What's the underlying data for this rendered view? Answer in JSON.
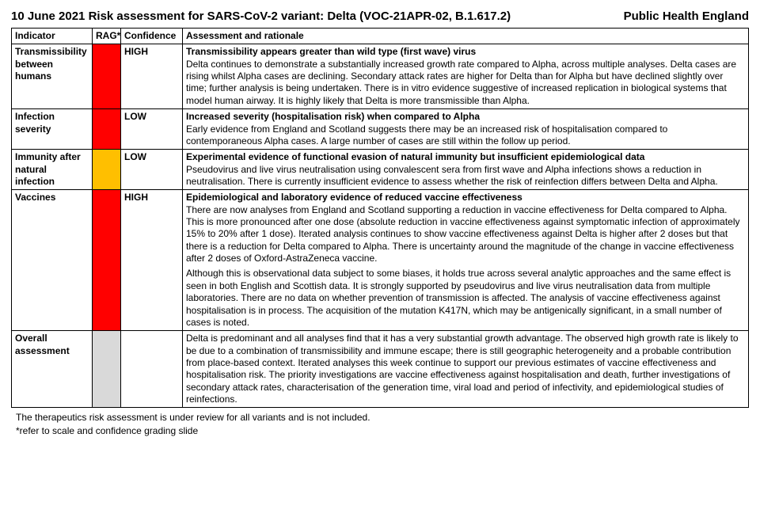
{
  "header": {
    "title_left": "10 June 2021 Risk assessment for SARS-CoV-2 variant: Delta (VOC-21APR-02, B.1.617.2)",
    "title_right": "Public Health England"
  },
  "columns": {
    "indicator": "Indicator",
    "rag": "RAG*",
    "confidence": "Confidence",
    "assessment": "Assessment and rationale"
  },
  "colors": {
    "red": "#ff0000",
    "amber": "#ffbf00",
    "grey": "#d9d9d9",
    "border": "#000000",
    "text": "#000000",
    "background": "#ffffff"
  },
  "rows": [
    {
      "indicator": "Transmissibility between humans",
      "rag_color": "#ff0000",
      "confidence": "HIGH",
      "headline": "Transmissibility appears greater than wild type (first wave) virus",
      "body": "Delta continues to demonstrate a substantially increased growth rate compared to Alpha, across multiple analyses. Delta cases are rising whilst Alpha cases are declining. Secondary attack rates are higher for Delta than for Alpha but have declined slightly over time; further analysis is being undertaken. There is in vitro evidence suggestive of increased replication in biological systems that model human airway. It is highly likely that Delta is more transmissible than Alpha."
    },
    {
      "indicator": "Infection severity",
      "rag_color": "#ff0000",
      "confidence": "LOW",
      "headline": "Increased severity (hospitalisation risk) when compared to Alpha",
      "body": "Early evidence from England and Scotland suggests there may be an increased risk of hospitalisation compared to contemporaneous Alpha cases. A large number of cases are still within the follow up period."
    },
    {
      "indicator": "Immunity after natural infection",
      "rag_color": "#ffbf00",
      "confidence": "LOW",
      "headline": "Experimental evidence of functional evasion of natural immunity but insufficient epidemiological data",
      "body": "Pseudovirus and live virus neutralisation using convalescent sera from first wave and Alpha infections shows a reduction in neutralisation. There is currently insufficient evidence to assess whether the risk of reinfection differs between Delta and Alpha."
    },
    {
      "indicator": "Vaccines",
      "rag_color": "#ff0000",
      "confidence": "HIGH",
      "headline": "Epidemiological and laboratory evidence of reduced vaccine effectiveness",
      "body": "There are now analyses from England and Scotland supporting a reduction in vaccine effectiveness for Delta compared to Alpha. This is more pronounced after one dose (absolute reduction in vaccine effectiveness against symptomatic infection of approximately 15% to 20% after 1 dose). Iterated analysis continues to show vaccine effectiveness against Delta is higher after 2 doses but that there is a reduction for Delta compared to Alpha. There is uncertainty around the magnitude of the change in vaccine effectiveness after 2 doses of Oxford-AstraZeneca vaccine.\nAlthough this is observational data subject to some biases, it holds true across several analytic approaches and the same effect is seen in both English and Scottish data. It is strongly supported by pseudovirus and live virus neutralisation data from multiple laboratories. There are no data on whether prevention of transmission is affected. The analysis of vaccine effectiveness against hospitalisation is in process. The acquisition of the mutation K417N, which may be antigenically significant, in a small number of cases is noted."
    },
    {
      "indicator": "Overall assessment",
      "rag_color": "#d9d9d9",
      "confidence": "",
      "headline": "",
      "body": "Delta is predominant and all analyses find that it has a very substantial growth advantage. The observed high growth rate is likely to be due to a combination of transmissibility and immune escape; there is still geographic heterogeneity and a probable contribution from place-based context. Iterated analyses this week continue to support our previous estimates of vaccine effectiveness and hospitalisation risk. The priority investigations are vaccine effectiveness against hospitalisation and death, further investigations of secondary attack rates, characterisation of the generation time, viral load and period of infectivity, and epidemiological studies of reinfections."
    }
  ],
  "footnotes": {
    "line1": "The therapeutics risk assessment is under review for all variants and is not included.",
    "line2": "*refer to scale and confidence grading slide"
  }
}
